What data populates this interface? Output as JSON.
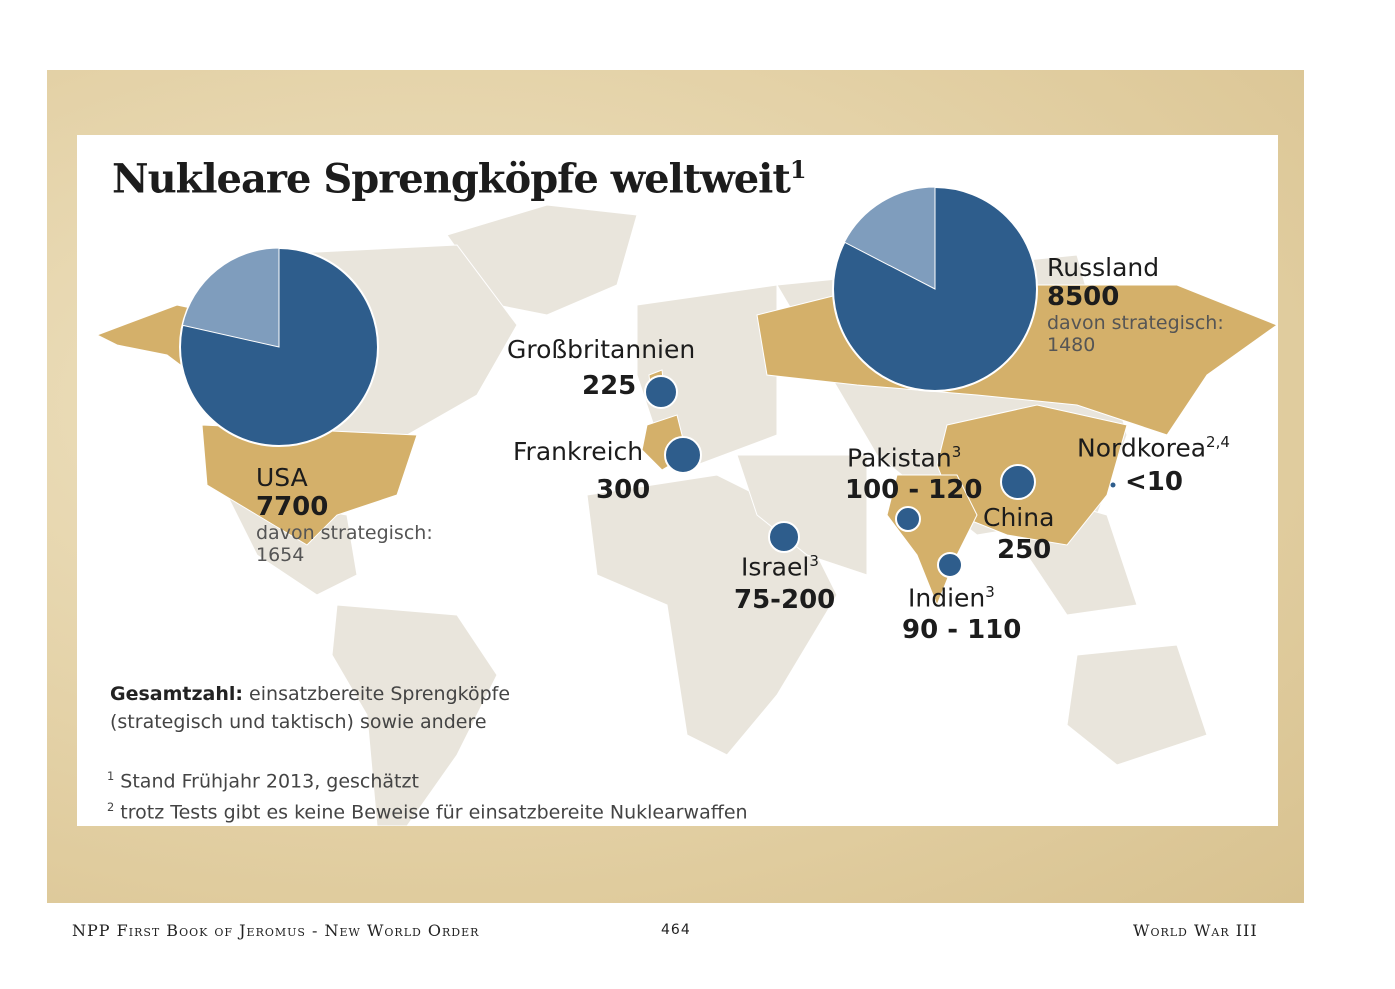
{
  "title": "Nukleare Sprengköpfe weltweit",
  "title_sup": "1",
  "colors": {
    "nuclear_country": "#d4b06a",
    "land": "#e9e5dc",
    "bubble": "#2e5d8c",
    "pie_dark": "#2e5d8c",
    "pie_light": "#7f9dbd",
    "parchment": "#e6d4a8"
  },
  "countries": [
    {
      "name": "USA",
      "value": "7700",
      "strategic_label": "davon strategisch:",
      "strategic": "1654",
      "total": 7700,
      "strategic_num": 1654
    },
    {
      "name": "Russland",
      "value": "8500",
      "strategic_label": "davon strategisch:",
      "strategic": "1480",
      "total": 8500,
      "strategic_num": 1480
    },
    {
      "name": "Großbritannien",
      "value": "225"
    },
    {
      "name": "Frankreich",
      "value": "300"
    },
    {
      "name": "Israel",
      "sup": "3",
      "value": "75-200"
    },
    {
      "name": "Pakistan",
      "sup": "3",
      "value": "100 - 120"
    },
    {
      "name": "China",
      "value": "250"
    },
    {
      "name": "Indien",
      "sup": "3",
      "value": "90 - 110"
    },
    {
      "name": "Nordkorea",
      "sup": "2,4",
      "value": "<10"
    }
  ],
  "legend": {
    "bold": "Gesamtzahl:",
    "text1": " einsatzbereite Sprengköpfe",
    "text2": "(strategisch und taktisch) sowie andere"
  },
  "footnotes": [
    {
      "num": "1",
      "text": "Stand Frühjahr 2013, geschätzt"
    },
    {
      "num": "2",
      "text": "trotz Tests gibt es keine Beweise für einsatzbereite Nuklearwaffen"
    }
  ],
  "footer": {
    "left": "NPP   First Book of Jeromus - New World Order",
    "page": "464",
    "right": "World War III"
  }
}
